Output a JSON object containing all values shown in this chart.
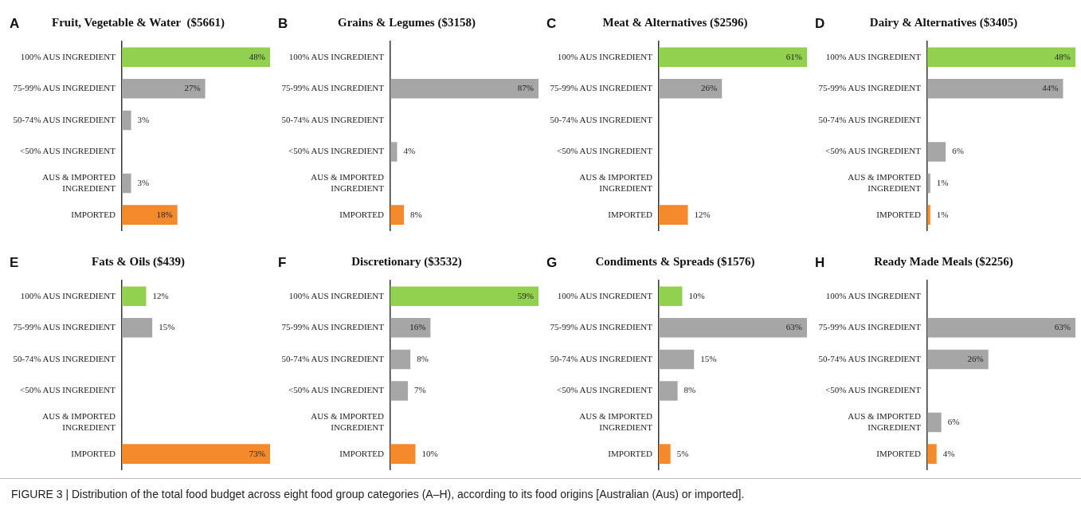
{
  "chart_data": [
    {
      "type": "bar",
      "orientation": "horizontal",
      "title": "Fruit, Vegetable & Water  ($5661)",
      "annotations": [
        "A",
        "FIGURE 3 | Distribution of the total food budget across eight food group categories (A–H), according to its food origins [Australian (Aus) or imported]."
      ],
      "categories": [
        "100% AUS INGREDIENT",
        "75-99% AUS INGREDIENT",
        "50-74% AUS INGREDIENT",
        "<50% AUS INGREDIENT",
        "AUS & IMPORTED INGREDIENT",
        "IMPORTED"
      ],
      "values": [
        48,
        27,
        3,
        null,
        3,
        18
      ],
      "value_labels": [
        "48%",
        "27%",
        "3%",
        null,
        "3%",
        "18%"
      ],
      "colors": [
        "#92d050",
        "#a6a6a6",
        "#a6a6a6",
        "#a6a6a6",
        "#a6a6a6",
        "#f58a2c"
      ],
      "legend": false
    },
    {
      "type": "bar",
      "orientation": "horizontal",
      "title": "Grains & Legumes ($3158)",
      "annotations": [
        "B"
      ],
      "categories": [
        "100% AUS INGREDIENT",
        "75-99% AUS INGREDIENT",
        "50-74% AUS INGREDIENT",
        "<50% AUS INGREDIENT",
        "AUS & IMPORTED INGREDIENT",
        "IMPORTED"
      ],
      "values": [
        null,
        87,
        null,
        4,
        null,
        8
      ],
      "value_labels": [
        null,
        "87%",
        null,
        "4%",
        null,
        "8%"
      ],
      "colors": [
        "#92d050",
        "#a6a6a6",
        "#a6a6a6",
        "#a6a6a6",
        "#a6a6a6",
        "#f58a2c"
      ],
      "legend": false
    },
    {
      "type": "bar",
      "orientation": "horizontal",
      "title": "Meat & Alternatives ($2596)",
      "annotations": [
        "C"
      ],
      "categories": [
        "100% AUS INGREDIENT",
        "75-99% AUS INGREDIENT",
        "50-74% AUS INGREDIENT",
        "<50% AUS INGREDIENT",
        "AUS & IMPORTED INGREDIENT",
        "IMPORTED"
      ],
      "values": [
        61,
        26,
        null,
        null,
        null,
        12
      ],
      "value_labels": [
        "61%",
        "26%",
        null,
        null,
        null,
        "12%"
      ],
      "colors": [
        "#92d050",
        "#a6a6a6",
        "#a6a6a6",
        "#a6a6a6",
        "#a6a6a6",
        "#f58a2c"
      ],
      "legend": false
    },
    {
      "type": "bar",
      "orientation": "horizontal",
      "title": "Dairy & Alternatives ($3405)",
      "annotations": [
        "D"
      ],
      "categories": [
        "100% AUS INGREDIENT",
        "75-99% AUS INGREDIENT",
        "50-74% AUS INGREDIENT",
        "<50% AUS INGREDIENT",
        "AUS & IMPORTED INGREDIENT",
        "IMPORTED"
      ],
      "values": [
        48,
        44,
        null,
        6,
        1,
        1
      ],
      "value_labels": [
        "48%",
        "44%",
        null,
        "6%",
        "1%",
        "1%"
      ],
      "colors": [
        "#92d050",
        "#a6a6a6",
        "#a6a6a6",
        "#a6a6a6",
        "#a6a6a6",
        "#f58a2c"
      ],
      "legend": false
    },
    {
      "type": "bar",
      "orientation": "horizontal",
      "title": "Fats & Oils ($439)",
      "annotations": [
        "E"
      ],
      "categories": [
        "100% AUS INGREDIENT",
        "75-99% AUS INGREDIENT",
        "50-74% AUS INGREDIENT",
        "<50% AUS INGREDIENT",
        "AUS & IMPORTED INGREDIENT",
        "IMPORTED"
      ],
      "values": [
        12,
        15,
        null,
        null,
        null,
        73
      ],
      "value_labels": [
        "12%",
        "15%",
        null,
        null,
        null,
        "73%"
      ],
      "colors": [
        "#92d050",
        "#a6a6a6",
        "#a6a6a6",
        "#a6a6a6",
        "#a6a6a6",
        "#f58a2c"
      ],
      "legend": false
    },
    {
      "type": "bar",
      "orientation": "horizontal",
      "title": "Discretionary ($3532)",
      "annotations": [
        "F"
      ],
      "categories": [
        "100% AUS INGREDIENT",
        "75-99% AUS INGREDIENT",
        "50-74% AUS INGREDIENT",
        "<50% AUS INGREDIENT",
        "AUS & IMPORTED INGREDIENT",
        "IMPORTED"
      ],
      "values": [
        59,
        16,
        8,
        7,
        null,
        10
      ],
      "value_labels": [
        "59%",
        "16%",
        "8%",
        "7%",
        null,
        "10%"
      ],
      "colors": [
        "#92d050",
        "#a6a6a6",
        "#a6a6a6",
        "#a6a6a6",
        "#a6a6a6",
        "#f58a2c"
      ],
      "legend": false
    },
    {
      "type": "bar",
      "orientation": "horizontal",
      "title": "Condiments & Spreads ($1576)",
      "annotations": [
        "G"
      ],
      "categories": [
        "100% AUS INGREDIENT",
        "75-99% AUS INGREDIENT",
        "50-74% AUS INGREDIENT",
        "<50% AUS INGREDIENT",
        "AUS & IMPORTED INGREDIENT",
        "IMPORTED"
      ],
      "values": [
        10,
        63,
        15,
        8,
        null,
        5
      ],
      "value_labels": [
        "10%",
        "63%",
        "15%",
        "8%",
        null,
        "5%"
      ],
      "colors": [
        "#92d050",
        "#a6a6a6",
        "#a6a6a6",
        "#a6a6a6",
        "#a6a6a6",
        "#f58a2c"
      ],
      "legend": false
    },
    {
      "type": "bar",
      "orientation": "horizontal",
      "title": "Ready Made Meals ($2256)",
      "annotations": [
        "H"
      ],
      "categories": [
        "100% AUS INGREDIENT",
        "75-99% AUS INGREDIENT",
        "50-74% AUS INGREDIENT",
        "<50% AUS INGREDIENT",
        "AUS & IMPORTED INGREDIENT",
        "IMPORTED"
      ],
      "values": [
        null,
        63,
        26,
        null,
        6,
        4
      ],
      "value_labels": [
        null,
        "63%",
        "26%",
        null,
        "6%",
        "4%"
      ],
      "colors": [
        "#92d050",
        "#a6a6a6",
        "#a6a6a6",
        "#a6a6a6",
        "#a6a6a6",
        "#f58a2c"
      ],
      "legend": false
    }
  ]
}
